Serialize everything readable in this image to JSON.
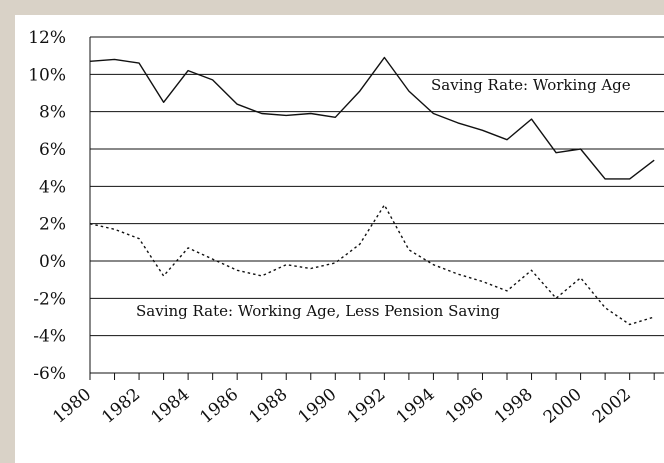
{
  "chart_data": {
    "type": "line",
    "x": [
      1980,
      1981,
      1982,
      1983,
      1984,
      1985,
      1986,
      1987,
      1988,
      1989,
      1990,
      1991,
      1992,
      1993,
      1994,
      1995,
      1996,
      1997,
      1998,
      1999,
      2000,
      2001,
      2002,
      2003
    ],
    "xticks": [
      "1980",
      "1982",
      "1984",
      "1986",
      "1988",
      "1990",
      "1992",
      "1994",
      "1996",
      "1998",
      "2000",
      "2002"
    ],
    "yticks": [
      "12%",
      "10%",
      "8%",
      "6%",
      "4%",
      "2%",
      "0%",
      "-2%",
      "-4%",
      "-6%"
    ],
    "ylim": [
      -6,
      12
    ],
    "xlim": [
      1980,
      2003.4
    ],
    "grid": "horizontal",
    "series": [
      {
        "name": "Saving Rate: Working Age",
        "style": "solid",
        "values": [
          10.7,
          10.8,
          10.6,
          8.5,
          10.2,
          9.7,
          8.4,
          7.9,
          7.8,
          7.9,
          7.7,
          9.1,
          10.9,
          9.1,
          7.9,
          7.4,
          7.0,
          6.5,
          7.6,
          5.8,
          6.0,
          4.4,
          4.4,
          5.4
        ]
      },
      {
        "name": "Saving Rate: Working Age, Less Pension Saving",
        "style": "dotted",
        "values": [
          2.0,
          1.7,
          1.2,
          -0.8,
          0.7,
          0.1,
          -0.5,
          -0.8,
          -0.2,
          -0.4,
          -0.1,
          0.9,
          3.0,
          0.6,
          -0.2,
          -0.7,
          -1.1,
          -1.6,
          -0.5,
          -2.0,
          -0.9,
          -2.5,
          -3.4,
          -3.0
        ]
      }
    ],
    "colors": {
      "line": "#111111",
      "grid": "#111111",
      "plot_bg": "#ffffff",
      "page_bg": "#d9d2c7"
    }
  }
}
